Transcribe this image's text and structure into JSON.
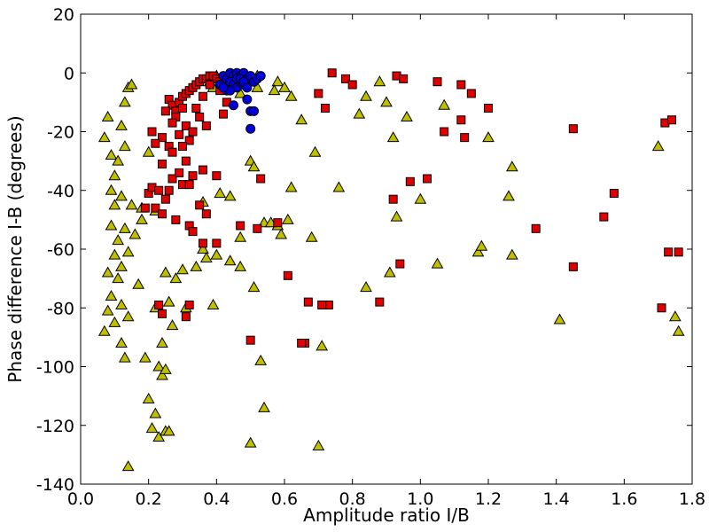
{
  "chart_data": {
    "type": "scatter",
    "title": "",
    "xlabel": "Amplitude ratio I/B",
    "ylabel": "Phase difference I-B (degrees)",
    "xlim": [
      0.0,
      1.8
    ],
    "ylim": [
      -140,
      20
    ],
    "xticks": [
      0.0,
      0.2,
      0.4,
      0.6,
      0.8,
      1.0,
      1.2,
      1.4,
      1.6,
      1.8
    ],
    "xtick_labels": [
      "0.0",
      "0.2",
      "0.4",
      "0.6",
      "0.8",
      "1.0",
      "1.2",
      "1.4",
      "1.6",
      "1.8"
    ],
    "yticks": [
      20,
      0,
      -20,
      -40,
      -60,
      -80,
      -100,
      -120,
      -140
    ],
    "ytick_labels": [
      "20",
      "0",
      "-20",
      "-40",
      "-60",
      "-80",
      "-100",
      "-120",
      "-140"
    ],
    "grid": false,
    "legend": "none",
    "series": [
      {
        "marker": "triangle",
        "color": "#bfbf00",
        "points": [
          [
            0.08,
            -15
          ],
          [
            0.09,
            -28
          ],
          [
            0.07,
            -22
          ],
          [
            0.09,
            -40
          ],
          [
            0.1,
            -45
          ],
          [
            0.12,
            -18
          ],
          [
            0.13,
            -10
          ],
          [
            0.14,
            -5
          ],
          [
            0.15,
            -4
          ],
          [
            0.13,
            -25
          ],
          [
            0.11,
            -30
          ],
          [
            0.1,
            -35
          ],
          [
            0.12,
            -42
          ],
          [
            0.09,
            -52
          ],
          [
            0.11,
            -57
          ],
          [
            0.1,
            -62
          ],
          [
            0.08,
            -68
          ],
          [
            0.12,
            -66
          ],
          [
            0.14,
            -61
          ],
          [
            0.13,
            -53
          ],
          [
            0.15,
            -45
          ],
          [
            0.16,
            -55
          ],
          [
            0.18,
            -50
          ],
          [
            0.17,
            -72
          ],
          [
            0.09,
            -76
          ],
          [
            0.11,
            -70
          ],
          [
            0.08,
            -81
          ],
          [
            0.1,
            -85
          ],
          [
            0.07,
            -88
          ],
          [
            0.12,
            -79
          ],
          [
            0.14,
            -83
          ],
          [
            0.12,
            -92
          ],
          [
            0.13,
            -97
          ],
          [
            0.19,
            -97
          ],
          [
            0.2,
            -111
          ],
          [
            0.22,
            -116
          ],
          [
            0.21,
            -121
          ],
          [
            0.23,
            -100
          ],
          [
            0.24,
            -103
          ],
          [
            0.25,
            -101
          ],
          [
            0.23,
            -124
          ],
          [
            0.25,
            -122
          ],
          [
            0.26,
            -122
          ],
          [
            0.14,
            -134
          ],
          [
            0.22,
            -80
          ],
          [
            0.26,
            -78
          ],
          [
            0.28,
            -70
          ],
          [
            0.3,
            -67
          ],
          [
            0.31,
            -80
          ],
          [
            0.34,
            -66
          ],
          [
            0.36,
            -60
          ],
          [
            0.37,
            -63
          ],
          [
            0.4,
            -62
          ],
          [
            0.39,
            -79
          ],
          [
            0.36,
            -44
          ],
          [
            0.41,
            -41
          ],
          [
            0.44,
            -64
          ],
          [
            0.47,
            -66
          ],
          [
            0.5,
            -126
          ],
          [
            0.53,
            -98
          ],
          [
            0.54,
            -114
          ],
          [
            0.51,
            -73
          ],
          [
            0.58,
            -52
          ],
          [
            0.59,
            -55
          ],
          [
            0.61,
            -50
          ],
          [
            0.62,
            -39
          ],
          [
            0.65,
            -16
          ],
          [
            0.68,
            -56
          ],
          [
            0.69,
            -27
          ],
          [
            0.7,
            -127
          ],
          [
            0.71,
            -93
          ],
          [
            0.76,
            -39
          ],
          [
            0.82,
            -14
          ],
          [
            0.84,
            -8
          ],
          [
            0.84,
            -73
          ],
          [
            0.88,
            -3
          ],
          [
            0.9,
            -10
          ],
          [
            0.91,
            -68
          ],
          [
            0.92,
            -22
          ],
          [
            0.93,
            -49
          ],
          [
            0.96,
            -15
          ],
          [
            1.0,
            -43
          ],
          [
            1.05,
            -65
          ],
          [
            1.07,
            -11
          ],
          [
            1.17,
            -61
          ],
          [
            1.18,
            -59
          ],
          [
            1.2,
            -22
          ],
          [
            1.26,
            -42
          ],
          [
            1.27,
            -32
          ],
          [
            1.27,
            -62
          ],
          [
            1.41,
            -84
          ],
          [
            1.7,
            -25
          ],
          [
            1.75,
            -83
          ],
          [
            1.76,
            -88
          ],
          [
            0.5,
            -30
          ],
          [
            0.51,
            -32
          ],
          [
            0.54,
            -51
          ],
          [
            0.56,
            -51
          ],
          [
            0.58,
            -3
          ],
          [
            0.57,
            -6
          ],
          [
            0.47,
            -7
          ],
          [
            0.52,
            -1
          ],
          [
            0.52,
            -5
          ],
          [
            0.4,
            -1
          ],
          [
            0.45,
            -2
          ],
          [
            0.38,
            -3
          ],
          [
            0.39,
            -5
          ],
          [
            0.47,
            -56
          ],
          [
            0.44,
            -42
          ],
          [
            0.2,
            -27
          ],
          [
            0.22,
            -47
          ],
          [
            0.18,
            -46
          ],
          [
            0.25,
            -68
          ],
          [
            0.27,
            -86
          ],
          [
            0.24,
            -92
          ],
          [
            0.6,
            -5
          ],
          [
            0.62,
            -8
          ]
        ]
      },
      {
        "marker": "square",
        "color": "#e00000",
        "points": [
          [
            0.26,
            -9
          ],
          [
            0.27,
            -11
          ],
          [
            0.28,
            -13
          ],
          [
            0.29,
            -10
          ],
          [
            0.3,
            -8
          ],
          [
            0.31,
            -7
          ],
          [
            0.32,
            -6
          ],
          [
            0.33,
            -5
          ],
          [
            0.34,
            -4
          ],
          [
            0.35,
            -3
          ],
          [
            0.36,
            -2
          ],
          [
            0.37,
            -2
          ],
          [
            0.38,
            -1
          ],
          [
            0.39,
            -1
          ],
          [
            0.4,
            -2
          ],
          [
            0.41,
            -3
          ],
          [
            0.3,
            -12
          ],
          [
            0.28,
            -15
          ],
          [
            0.31,
            -18
          ],
          [
            0.33,
            -20
          ],
          [
            0.32,
            -23
          ],
          [
            0.27,
            -17
          ],
          [
            0.29,
            -21
          ],
          [
            0.26,
            -25
          ],
          [
            0.25,
            -13
          ],
          [
            0.24,
            -22
          ],
          [
            0.21,
            -20
          ],
          [
            0.22,
            -24
          ],
          [
            0.24,
            -31
          ],
          [
            0.27,
            -27
          ],
          [
            0.3,
            -25
          ],
          [
            0.31,
            -30
          ],
          [
            0.2,
            -41
          ],
          [
            0.21,
            -39
          ],
          [
            0.23,
            -40
          ],
          [
            0.22,
            -46
          ],
          [
            0.19,
            -46
          ],
          [
            0.24,
            -48
          ],
          [
            0.25,
            -43
          ],
          [
            0.26,
            -40
          ],
          [
            0.27,
            -36
          ],
          [
            0.29,
            -34
          ],
          [
            0.3,
            -38
          ],
          [
            0.32,
            -38
          ],
          [
            0.33,
            -35
          ],
          [
            0.36,
            -33
          ],
          [
            0.37,
            -48
          ],
          [
            0.4,
            -35
          ],
          [
            0.42,
            -14
          ],
          [
            0.28,
            -50
          ],
          [
            0.32,
            -52
          ],
          [
            0.35,
            -45
          ],
          [
            0.33,
            -54
          ],
          [
            0.36,
            -58
          ],
          [
            0.4,
            -58
          ],
          [
            0.47,
            -52
          ],
          [
            0.52,
            -53
          ],
          [
            0.53,
            -36
          ],
          [
            0.58,
            -51
          ],
          [
            0.61,
            -69
          ],
          [
            0.66,
            -92
          ],
          [
            0.7,
            -7
          ],
          [
            0.72,
            -12
          ],
          [
            0.74,
            0
          ],
          [
            0.78,
            -2
          ],
          [
            0.8,
            -4
          ],
          [
            0.73,
            -79
          ],
          [
            0.71,
            -79
          ],
          [
            0.88,
            -78
          ],
          [
            0.92,
            -43
          ],
          [
            0.93,
            -1
          ],
          [
            0.95,
            -2
          ],
          [
            0.97,
            -37
          ],
          [
            1.02,
            -36
          ],
          [
            1.05,
            -3
          ],
          [
            1.07,
            -20
          ],
          [
            1.12,
            -4
          ],
          [
            1.12,
            -16
          ],
          [
            1.13,
            -22
          ],
          [
            1.15,
            -7
          ],
          [
            1.2,
            -12
          ],
          [
            1.34,
            -53
          ],
          [
            1.45,
            -19
          ],
          [
            1.45,
            -66
          ],
          [
            1.54,
            -49
          ],
          [
            1.57,
            -41
          ],
          [
            1.71,
            -80
          ],
          [
            1.72,
            -17
          ],
          [
            1.74,
            -16
          ],
          [
            1.73,
            -61
          ],
          [
            1.76,
            -61
          ],
          [
            0.23,
            -79
          ],
          [
            0.24,
            -82
          ],
          [
            0.31,
            -83
          ],
          [
            0.32,
            -79
          ],
          [
            0.5,
            -91
          ],
          [
            0.65,
            -92
          ],
          [
            0.94,
            -65
          ],
          [
            0.67,
            -78
          ],
          [
            0.43,
            -10
          ],
          [
            0.41,
            -6
          ],
          [
            0.38,
            -4
          ],
          [
            0.36,
            -8
          ],
          [
            0.34,
            -12
          ],
          [
            0.35,
            -15
          ],
          [
            0.37,
            -18
          ]
        ]
      },
      {
        "marker": "circle",
        "color": "#0000dd",
        "points": [
          [
            0.42,
            -1
          ],
          [
            0.43,
            -2
          ],
          [
            0.44,
            0
          ],
          [
            0.45,
            -1
          ],
          [
            0.46,
            0
          ],
          [
            0.47,
            -1
          ],
          [
            0.48,
            0
          ],
          [
            0.49,
            -2
          ],
          [
            0.5,
            -1
          ],
          [
            0.51,
            -3
          ],
          [
            0.52,
            -2
          ],
          [
            0.53,
            -1
          ],
          [
            0.44,
            -3
          ],
          [
            0.45,
            -4
          ],
          [
            0.46,
            -5
          ],
          [
            0.47,
            -3
          ],
          [
            0.48,
            -4
          ],
          [
            0.43,
            -6
          ],
          [
            0.44,
            -6
          ],
          [
            0.41,
            -4
          ],
          [
            0.42,
            -5
          ],
          [
            0.45,
            -11
          ],
          [
            0.49,
            -9
          ],
          [
            0.5,
            -13
          ],
          [
            0.51,
            -13
          ],
          [
            0.5,
            -19
          ],
          [
            0.46,
            -2
          ],
          [
            0.47,
            -2
          ],
          [
            0.48,
            -3
          ],
          [
            0.49,
            -5
          ]
        ]
      }
    ]
  }
}
